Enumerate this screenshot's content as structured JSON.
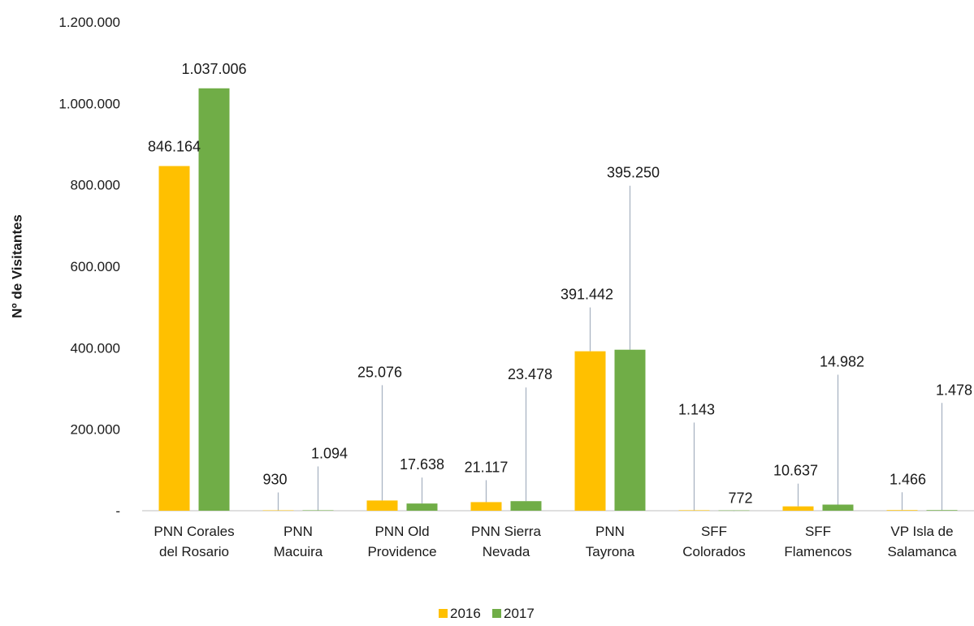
{
  "chart_data": {
    "type": "bar",
    "title": "",
    "xlabel": "",
    "ylabel": "Nº de Visitantes",
    "ylim": [
      0,
      1200000
    ],
    "yticks": [
      {
        "value": 0,
        "label": "-"
      },
      {
        "value": 200000,
        "label": "200.000"
      },
      {
        "value": 400000,
        "label": "400.000"
      },
      {
        "value": 600000,
        "label": "600.000"
      },
      {
        "value": 800000,
        "label": "800.000"
      },
      {
        "value": 1000000,
        "label": "1.000.000"
      },
      {
        "value": 1200000,
        "label": "1.200.000"
      }
    ],
    "categories": [
      [
        "PNN Corales",
        "del Rosario"
      ],
      [
        "PNN",
        "Macuira"
      ],
      [
        "PNN Old",
        "Providence"
      ],
      [
        "PNN Sierra",
        "Nevada"
      ],
      [
        "PNN",
        "Tayrona"
      ],
      [
        "SFF",
        "Colorados"
      ],
      [
        "SFF",
        "Flamencos"
      ],
      [
        "VP Isla de",
        "Salamanca"
      ]
    ],
    "series": [
      {
        "name": "2016",
        "color": "#FFC000",
        "values": [
          846164,
          930,
          25076,
          21117,
          391442,
          1143,
          10637,
          1466
        ],
        "labels": [
          "846.164",
          "930",
          "25.076",
          "21.117",
          "391.442",
          "1.143",
          "10.637",
          "1.466"
        ]
      },
      {
        "name": "2017",
        "color": "#70AD47",
        "values": [
          1037006,
          1094,
          17638,
          23478,
          395250,
          772,
          14982,
          1478
        ],
        "labels": [
          "1.037.006",
          "1.094",
          "17.638",
          "23.478",
          "395.250",
          "772",
          "14.982",
          "1.478"
        ]
      }
    ],
    "legend": "bottom",
    "grid": false
  }
}
